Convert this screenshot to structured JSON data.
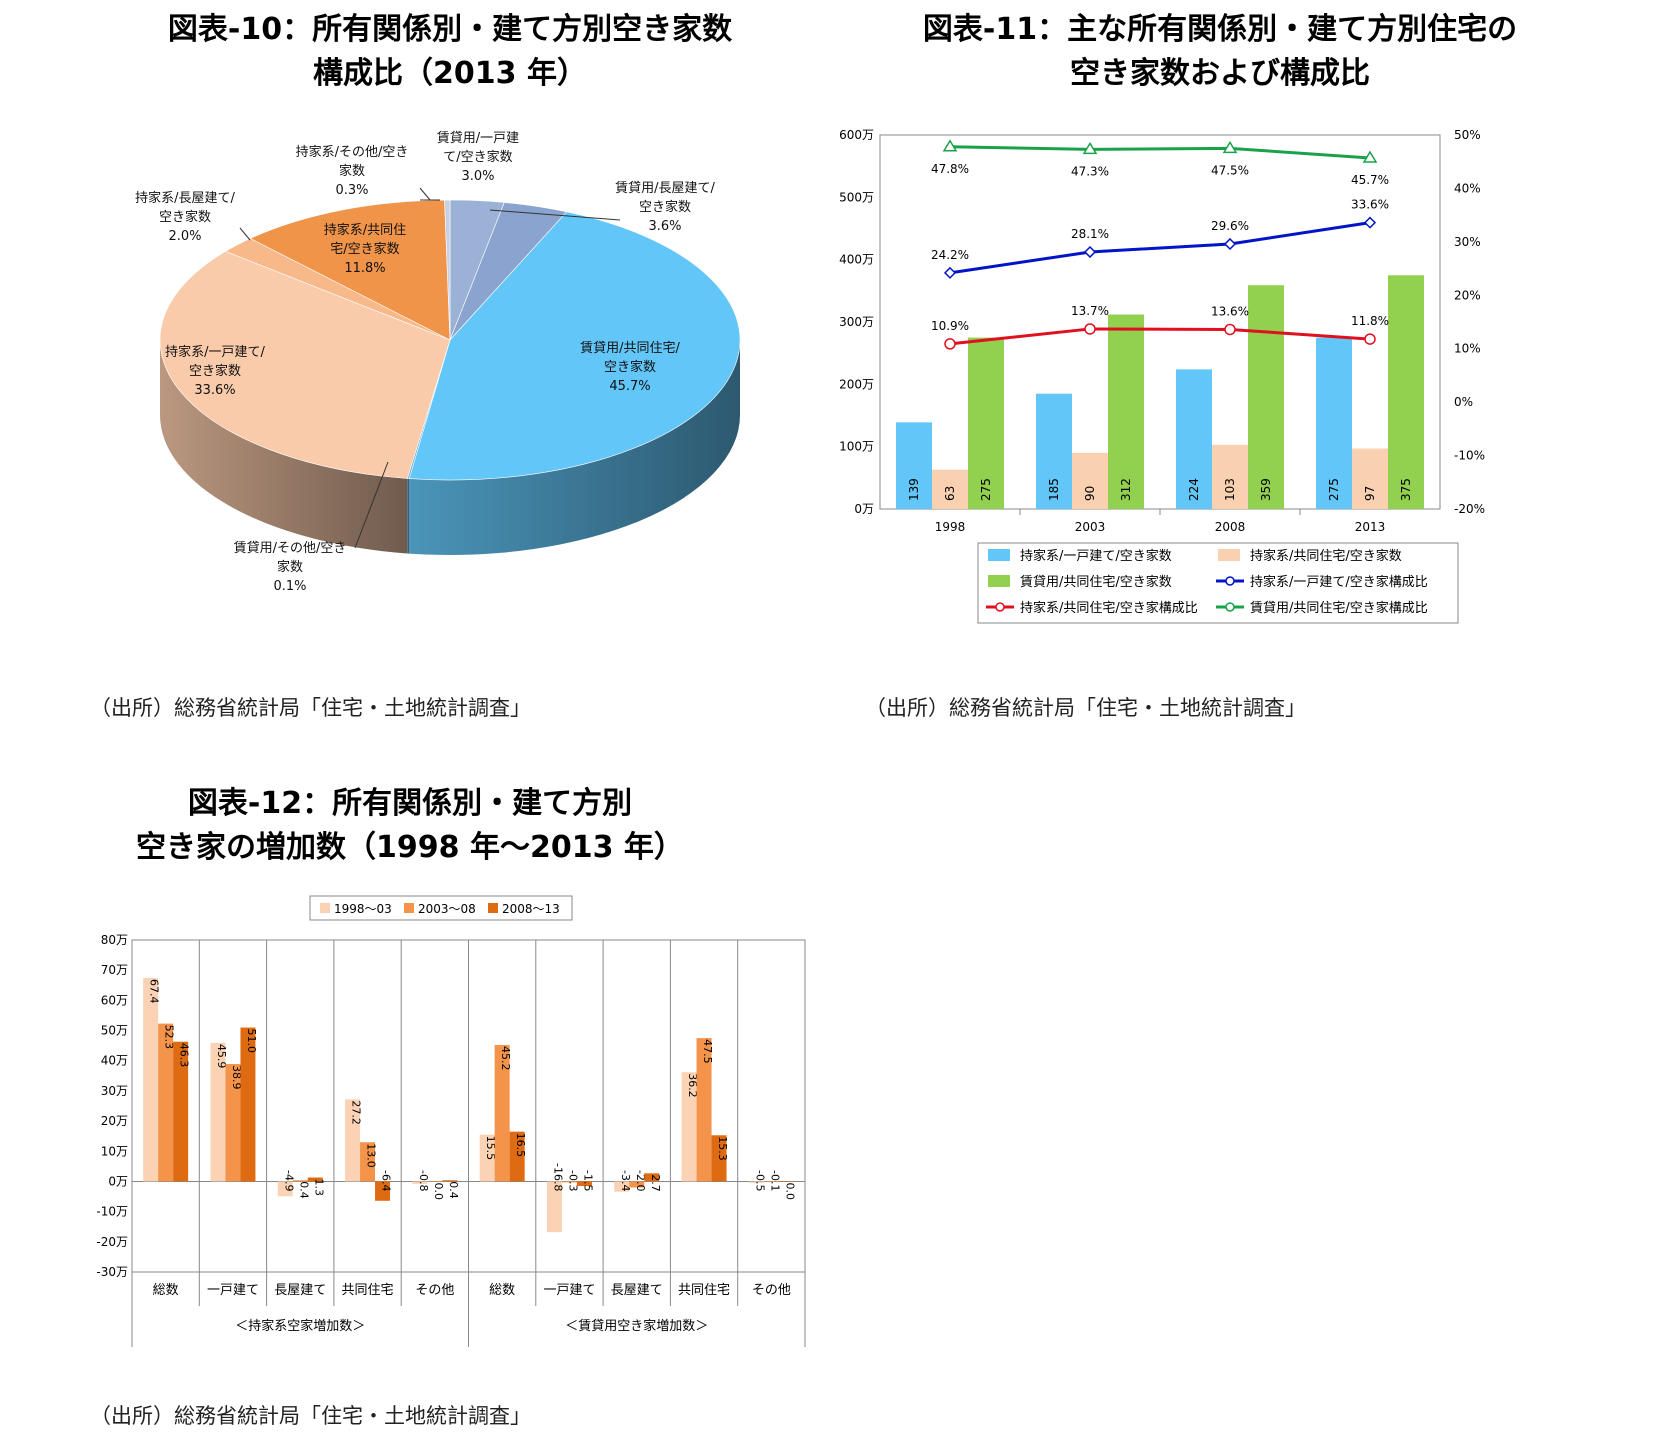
{
  "figure10": {
    "title_line1": "図表-10：所有関係別・建て方別空き家数",
    "title_line2": "構成比（2013 年）",
    "source": "（出所）総務省統計局「住宅・土地統計調査」",
    "chart_data": {
      "type": "pie",
      "slices": [
        {
          "label_lines": [
            "賃貸用/一戸建",
            "て/空き家数"
          ],
          "value_label": "3.0%",
          "value": 3.0,
          "color": "#9bb2d6"
        },
        {
          "label_lines": [
            "賃貸用/長屋建て/",
            "空き家数"
          ],
          "value_label": "3.6%",
          "value": 3.6,
          "color": "#8aa4cf"
        },
        {
          "label_lines": [
            "賃貸用/共同住宅/",
            "空き家数"
          ],
          "value_label": "45.7%",
          "value": 45.7,
          "color": "#63c6f8"
        },
        {
          "label_lines": [
            "賃貸用/その他/空き",
            "家数"
          ],
          "value_label": "0.1%",
          "value": 0.1,
          "color": "#5fa8d8"
        },
        {
          "label_lines": [
            "持家系/一戸建て/",
            "空き家数"
          ],
          "value_label": "33.6%",
          "value": 33.6,
          "color": "#f9cbab"
        },
        {
          "label_lines": [
            "持家系/長屋建て/",
            "空き家数"
          ],
          "value_label": "2.0%",
          "value": 2.0,
          "color": "#f7b88a"
        },
        {
          "label_lines": [
            "持家系/共同住",
            "宅/空き家数"
          ],
          "value_label": "11.8%",
          "value": 11.8,
          "color": "#f0944a"
        },
        {
          "label_lines": [
            "持家系/その他/空き",
            "家数"
          ],
          "value_label": "0.3%",
          "value": 0.3,
          "color": "#c7d1e4"
        }
      ]
    }
  },
  "figure11": {
    "title_line1": "図表-11：主な所有関係別・建て方別住宅の",
    "title_line2": "空き家数および構成比",
    "source": "（出所）総務省統計局「住宅・土地統計調査」",
    "chart_data": {
      "type": "bar",
      "categories": [
        "1998",
        "2003",
        "2008",
        "2013"
      ],
      "y_left_ticks": [
        "0万",
        "100万",
        "200万",
        "300万",
        "400万",
        "500万",
        "600万"
      ],
      "y_left_lim": [
        0,
        600
      ],
      "y_right_ticks": [
        "-20%",
        "-10%",
        "0%",
        "10%",
        "20%",
        "30%",
        "40%",
        "50%"
      ],
      "y_right_lim": [
        -20,
        50
      ],
      "bar_series": [
        {
          "name": "持家系/一戸建て/空き家数",
          "values": [
            139,
            185,
            224,
            275
          ],
          "color": "#63c6f8"
        },
        {
          "name": "持家系/共同住宅/空き家数",
          "values": [
            63,
            90,
            103,
            97
          ],
          "color": "#f9d0b0"
        },
        {
          "name": "賃貸用/共同住宅/空き家数",
          "values": [
            275,
            312,
            359,
            375
          ],
          "color": "#92d050"
        }
      ],
      "line_series": [
        {
          "name": "持家系/一戸建て/空き家構成比",
          "values": [
            24.2,
            28.1,
            29.6,
            33.6
          ],
          "labels": [
            "24.2%",
            "28.1%",
            "29.6%",
            "33.6%"
          ],
          "color": "#0014c8",
          "marker": "diamond"
        },
        {
          "name": "持家系/共同住宅/空き家構成比",
          "values": [
            10.9,
            13.7,
            13.6,
            11.8
          ],
          "labels": [
            "10.9%",
            "13.7%",
            "13.6%",
            "11.8%"
          ],
          "color": "#e0101e",
          "marker": "circle"
        },
        {
          "name": "賃貸用/共同住宅/空き家構成比",
          "values": [
            47.8,
            47.3,
            47.5,
            45.7
          ],
          "labels": [
            "47.8%",
            "47.3%",
            "47.5%",
            "45.7%"
          ],
          "color": "#1aa24a",
          "marker": "triangle"
        }
      ],
      "legend_placement": "bottom"
    }
  },
  "figure12": {
    "title_line1": "図表-12：所有関係別・建て方別",
    "title_line2": "空き家の増加数（1998 年～2013 年）",
    "source": "（出所）総務省統計局「住宅・土地統計調査」",
    "chart_data": {
      "type": "bar",
      "categories": [
        "総数",
        "一戸建て",
        "長屋建て",
        "共同住宅",
        "その他",
        "総数",
        "一戸建て",
        "長屋建て",
        "共同住宅",
        "その他"
      ],
      "groups": [
        {
          "label": "＜持家系空家増加数＞",
          "span": 5
        },
        {
          "label": "＜賃貸用空き家増加数＞",
          "span": 5
        }
      ],
      "y_ticks": [
        "-30万",
        "-20万",
        "-10万",
        "0万",
        "10万",
        "20万",
        "30万",
        "40万",
        "50万",
        "60万",
        "70万",
        "80万"
      ],
      "ylim": [
        -30,
        80
      ],
      "series": [
        {
          "name": "1998～03",
          "values": [
            67.4,
            45.9,
            -4.9,
            27.2,
            -0.8,
            15.5,
            -16.8,
            -3.4,
            36.2,
            -0.5
          ],
          "labels": [
            "67.4",
            "45.9",
            "-4.9",
            "27.2",
            "-0.8",
            "15.5",
            "-16.8",
            "-3.4",
            "36.2",
            "-0.5"
          ],
          "color": "#fbd3b4"
        },
        {
          "name": "2003～08",
          "values": [
            52.3,
            38.9,
            0.4,
            13.0,
            0.0,
            45.2,
            -0.3,
            -2.0,
            47.5,
            -0.1
          ],
          "labels": [
            "52.3",
            "38.9",
            "0.4",
            "13.0",
            "0.0",
            "45.2",
            "-0.3",
            "-2.0",
            "47.5",
            "-0.1"
          ],
          "color": "#f4934a"
        },
        {
          "name": "2008～13",
          "values": [
            46.3,
            51.0,
            1.3,
            -6.4,
            0.4,
            16.5,
            -1.5,
            2.7,
            15.3,
            0.0
          ],
          "labels": [
            "46.3",
            "51.0",
            "1.3",
            "-6.4",
            "0.4",
            "16.5",
            "-1.5",
            "2.7",
            "15.3",
            "0.0"
          ],
          "color": "#de6b12"
        }
      ],
      "legend_placement": "top"
    }
  }
}
